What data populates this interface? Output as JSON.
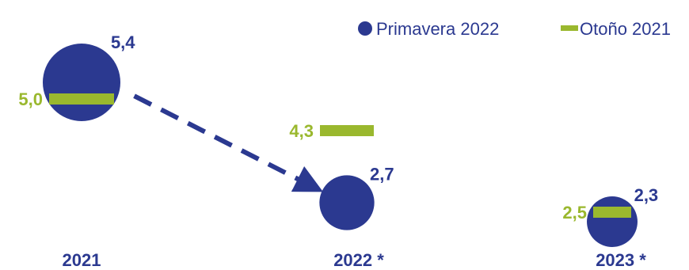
{
  "chart_data": {
    "type": "bubble-comparison",
    "categories": [
      "2021",
      "2022 *",
      "2023 *"
    ],
    "series": [
      {
        "name": "Primavera 2022",
        "marker": "circle",
        "color": "#2b3990",
        "values": [
          5.4,
          2.7,
          2.3
        ],
        "labels": [
          "5,4",
          "2,7",
          "2,3"
        ]
      },
      {
        "name": "Otoño 2021",
        "marker": "bar",
        "color": "#9ab82e",
        "values": [
          5.0,
          4.3,
          2.5
        ],
        "labels": [
          "5,0",
          "4,3",
          "2,5"
        ]
      }
    ],
    "annotations": [
      {
        "type": "dashed-arrow",
        "from_category": "2021",
        "to_category": "2022 *",
        "color": "#2b3990"
      }
    ],
    "legend_position": "top-right"
  }
}
